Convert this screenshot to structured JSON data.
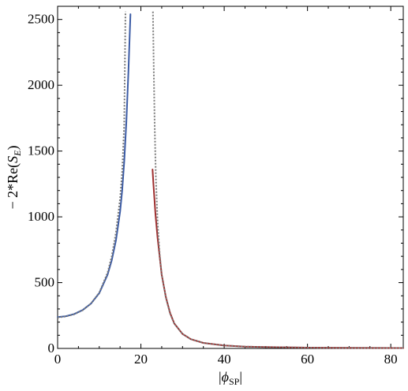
{
  "chart_data": {
    "type": "line",
    "title": "",
    "xlabel": "|ϕSP|",
    "xlabel_parts": {
      "pre": "|",
      "phi": "ϕ",
      "sub": "SP",
      "post": "|"
    },
    "ylabel": "− 2*Re(SE)",
    "ylabel_parts": {
      "pre": "− 2*Re(",
      "s": "S",
      "sub": "E",
      "post": ")"
    },
    "xlim": [
      0,
      83
    ],
    "ylim": [
      0,
      2600
    ],
    "xticks": [
      0,
      20,
      40,
      60,
      80
    ],
    "yticks": [
      0,
      500,
      1000,
      1500,
      2000,
      2500
    ],
    "grid": false,
    "series": [
      {
        "color": "#3b5ba5",
        "dash": "solid",
        "x": [
          0,
          2,
          4,
          6,
          8,
          10,
          12,
          13,
          14,
          15,
          15.5,
          16,
          16.5,
          17,
          17.5
        ],
        "y": [
          238,
          245,
          262,
          292,
          340,
          420,
          560,
          670,
          820,
          1040,
          1200,
          1420,
          1720,
          2100,
          2540
        ]
      },
      {
        "color": "#9e2f2f",
        "dash": "solid",
        "x": [
          22.8,
          23,
          23.5,
          24,
          25,
          26,
          27,
          28,
          30,
          32,
          35,
          40,
          45,
          50,
          60,
          70,
          83
        ],
        "y": [
          1360,
          1250,
          1020,
          840,
          560,
          390,
          270,
          190,
          110,
          70,
          42,
          22,
          14,
          10,
          6,
          4,
          3
        ]
      },
      {
        "color": "#7a7a7a",
        "dash": "dotted",
        "x": [
          0,
          2,
          4,
          6,
          8,
          10,
          12,
          13,
          14,
          15,
          15.5,
          16,
          16.3
        ],
        "y": [
          235,
          243,
          260,
          290,
          340,
          425,
          575,
          700,
          880,
          1140,
          1340,
          1700,
          2560
        ]
      },
      {
        "color": "#7a7a7a",
        "dash": "dotted",
        "x": [
          22.9,
          23.1,
          23.3,
          23.6,
          24,
          24.5,
          25,
          26,
          27,
          28,
          30,
          32,
          35,
          40,
          45,
          50,
          60,
          70,
          83
        ],
        "y": [
          2560,
          2100,
          1700,
          1300,
          960,
          720,
          560,
          385,
          265,
          188,
          110,
          70,
          42,
          22,
          14,
          10,
          6,
          4,
          3
        ]
      }
    ]
  }
}
